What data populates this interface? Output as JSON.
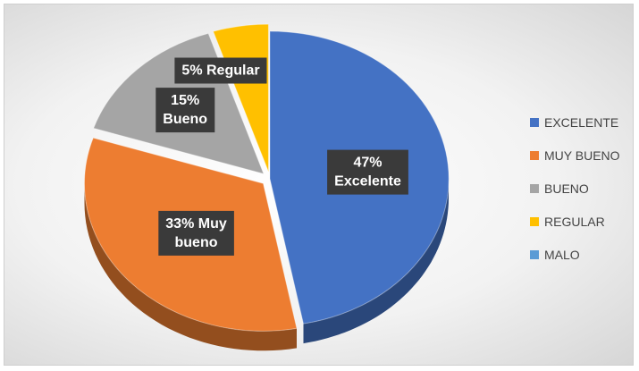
{
  "chart_data": {
    "type": "pie",
    "title": "",
    "style": "3d-exploded",
    "categories": [
      "EXCELENTE",
      "MUY BUENO",
      "BUENO",
      "REGULAR",
      "MALO"
    ],
    "values": [
      47,
      33,
      15,
      5,
      0
    ],
    "data_labels": [
      "47%\nExcelente",
      "33% Muy\nbueno",
      "15%\nBueno",
      "5% Regular",
      ""
    ],
    "colors": [
      "#4472C4",
      "#ED7D31",
      "#A5A5A5",
      "#FFC000",
      "#5B9BD5"
    ],
    "label_background": "#3a3a3a",
    "label_text_color": "#ffffff",
    "legend": {
      "position": "right"
    }
  }
}
